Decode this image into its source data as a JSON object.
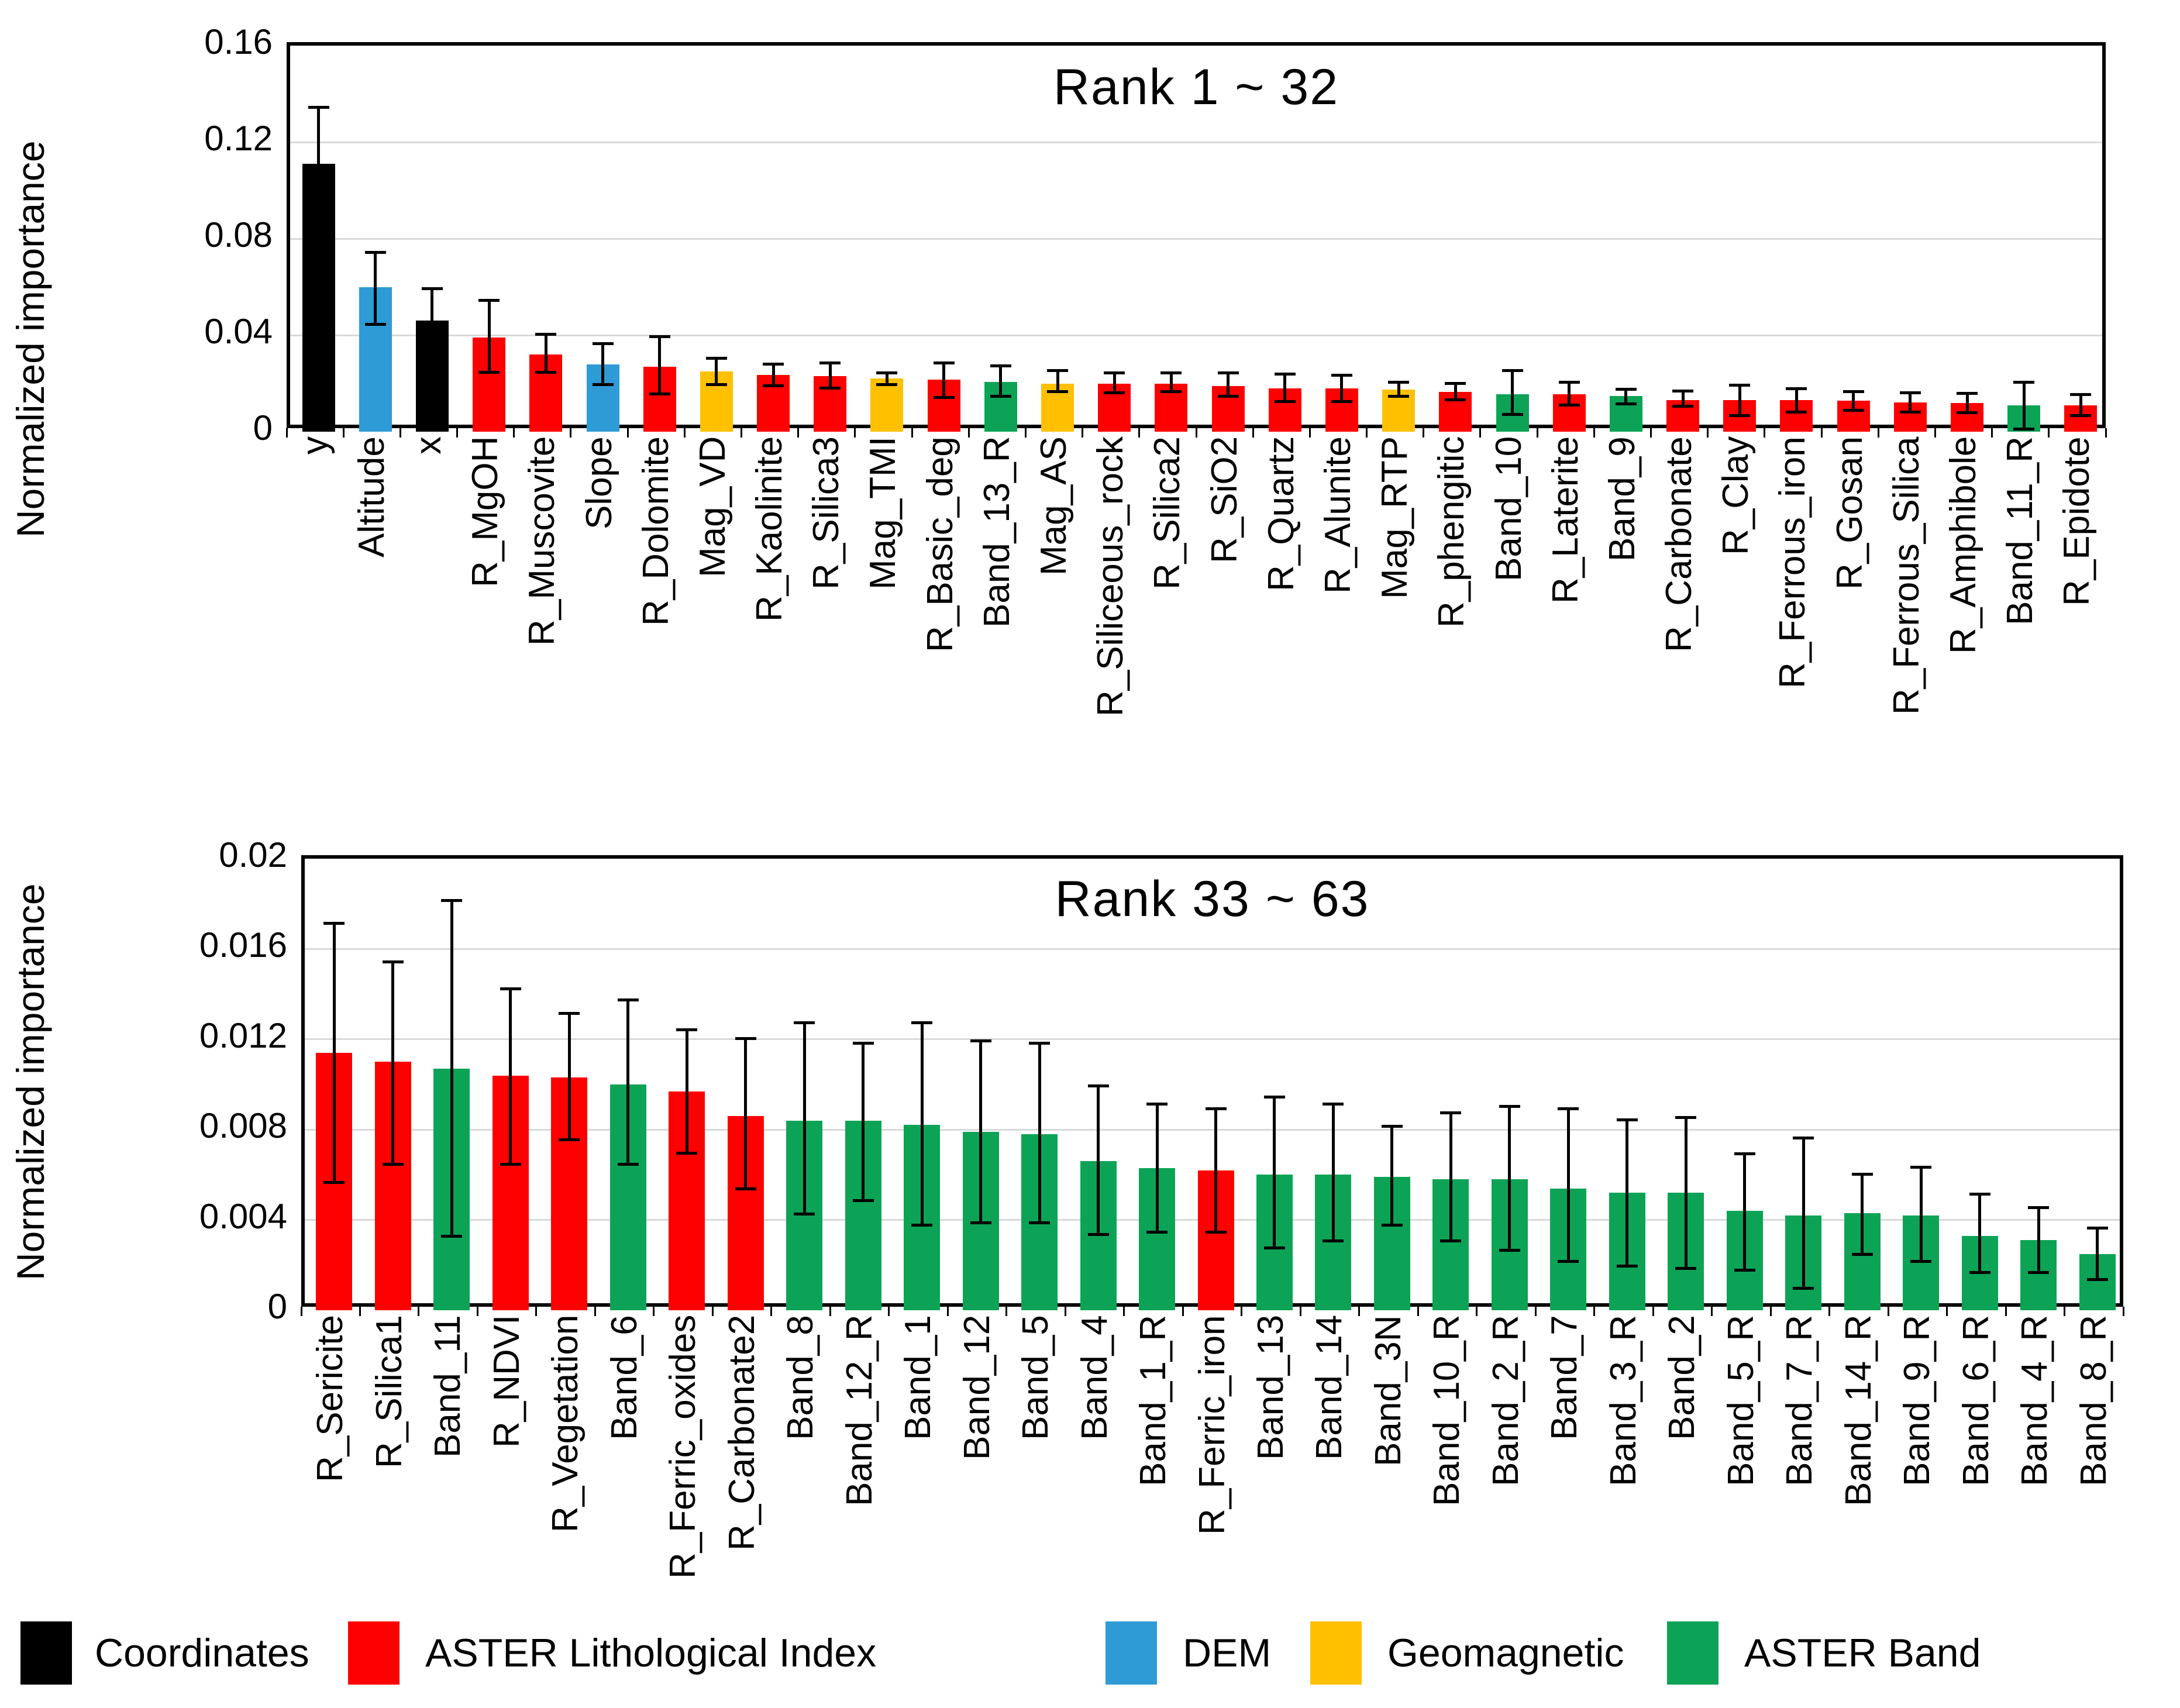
{
  "colors": {
    "coordinates": "#000000",
    "aster_index": "#FF0000",
    "dem": "#2E9BD6",
    "geomagnetic": "#FFC000",
    "aster_band": "#0DA356",
    "gridline": "#D9D9D9",
    "axis": "#000000"
  },
  "legend": {
    "items": [
      {
        "label": "Coordinates",
        "group": "coordinates"
      },
      {
        "label": "ASTER Lithological Index",
        "group": "aster_index"
      },
      {
        "label": "DEM",
        "group": "dem"
      },
      {
        "label": "Geomagnetic",
        "group": "geomagnetic"
      },
      {
        "label": "ASTER Band",
        "group": "aster_band"
      }
    ]
  },
  "chart_data": [
    {
      "type": "bar",
      "title": "Rank 1 ~ 32",
      "ylabel": "Normalized importance",
      "xlabel": "",
      "ylim": [
        0,
        0.16
      ],
      "grid": true,
      "ytick_values": [
        0,
        0.04,
        0.08,
        0.12,
        0.16
      ],
      "ytick_labels": [
        "0",
        "0.04",
        "0.08",
        "0.12",
        "0.16"
      ],
      "categories": [
        "y",
        "Altitude",
        "x",
        "R_MgOH",
        "R_Muscovite",
        "Slope",
        "R_Dolomite",
        "Mag_VD",
        "R_Kaolinite",
        "R_Silica3",
        "Mag_TMI",
        "R_Basic_deg",
        "Band_13_R",
        "Mag_AS",
        "R_Siliceous_rock",
        "R_Silica2",
        "R_SiO2",
        "R_Quartz",
        "R_Alunite",
        "Mag_RTP",
        "R_phengitic",
        "Band_10",
        "R_Laterite",
        "Band_9",
        "R_Carbonate",
        "R_Clay",
        "R_Ferrous_iron",
        "R_Gosan",
        "R_Ferrous_Silica",
        "R_Amphibole",
        "Band_11_R",
        "R_Epidote"
      ],
      "groups": [
        "coordinates",
        "dem",
        "coordinates",
        "aster_index",
        "aster_index",
        "dem",
        "aster_index",
        "geomagnetic",
        "aster_index",
        "aster_index",
        "geomagnetic",
        "aster_index",
        "aster_band",
        "geomagnetic",
        "aster_index",
        "aster_index",
        "aster_index",
        "aster_index",
        "aster_index",
        "geomagnetic",
        "aster_index",
        "aster_band",
        "aster_index",
        "aster_band",
        "aster_index",
        "aster_index",
        "aster_index",
        "aster_index",
        "aster_index",
        "aster_index",
        "aster_band",
        "aster_index"
      ],
      "values": [
        0.111,
        0.06,
        0.046,
        0.039,
        0.032,
        0.028,
        0.027,
        0.025,
        0.0235,
        0.023,
        0.022,
        0.0215,
        0.0205,
        0.02,
        0.02,
        0.02,
        0.019,
        0.018,
        0.018,
        0.0175,
        0.0165,
        0.0155,
        0.0155,
        0.0148,
        0.013,
        0.013,
        0.013,
        0.0128,
        0.0122,
        0.012,
        0.011,
        0.011
      ],
      "err_minus": [
        0.023,
        0.016,
        0.007,
        0.015,
        0.008,
        0.009,
        0.012,
        0.006,
        0.005,
        0.0055,
        0.003,
        0.008,
        0.0065,
        0.004,
        0.0045,
        0.004,
        0.005,
        0.006,
        0.006,
        0.0035,
        0.004,
        0.009,
        0.005,
        0.004,
        0.003,
        0.007,
        0.0055,
        0.0045,
        0.0048,
        0.0047,
        0.0105,
        0.005
      ],
      "err_plus": [
        0.024,
        0.015,
        0.014,
        0.016,
        0.009,
        0.009,
        0.013,
        0.006,
        0.005,
        0.006,
        0.003,
        0.0075,
        0.0075,
        0.006,
        0.005,
        0.005,
        0.006,
        0.0065,
        0.006,
        0.0035,
        0.004,
        0.0105,
        0.0055,
        0.0035,
        0.0045,
        0.007,
        0.0055,
        0.0045,
        0.0045,
        0.0045,
        0.01,
        0.005
      ]
    },
    {
      "type": "bar",
      "title": "Rank 33 ~ 63",
      "ylabel": "Normalized importance",
      "xlabel": "",
      "ylim": [
        0,
        0.02
      ],
      "grid": true,
      "ytick_values": [
        0,
        0.004,
        0.008,
        0.012,
        0.016,
        0.02
      ],
      "ytick_labels": [
        "0",
        "0.004",
        "0.008",
        "0.012",
        "0.016",
        "0.02"
      ],
      "categories": [
        "R_Sericite",
        "R_Silica1",
        "Band_11",
        "R_NDVI",
        "R_Vegetation",
        "Band_6",
        "R_Ferric_oxides",
        "R_Carbonate2",
        "Band_8",
        "Band_12_R",
        "Band_1",
        "Band_12",
        "Band_5",
        "Band_4",
        "Band_1_R",
        "R_Ferric_iron",
        "Band_13",
        "Band_14",
        "Band_3N",
        "Band_10_R",
        "Band_2_R",
        "Band_7",
        "Band_3_R",
        "Band_2",
        "Band_5_R",
        "Band_7_R",
        "Band_14_R",
        "Band_9_R",
        "Band_6_R",
        "Band_4_R",
        "Band_8_R"
      ],
      "groups": [
        "aster_index",
        "aster_index",
        "aster_band",
        "aster_index",
        "aster_index",
        "aster_band",
        "aster_index",
        "aster_index",
        "aster_band",
        "aster_band",
        "aster_band",
        "aster_band",
        "aster_band",
        "aster_band",
        "aster_band",
        "aster_index",
        "aster_band",
        "aster_band",
        "aster_band",
        "aster_band",
        "aster_band",
        "aster_band",
        "aster_band",
        "aster_band",
        "aster_band",
        "aster_band",
        "aster_band",
        "aster_band",
        "aster_band",
        "aster_band",
        "aster_band"
      ],
      "values": [
        0.0114,
        0.011,
        0.0107,
        0.0104,
        0.0103,
        0.01,
        0.0097,
        0.0086,
        0.0084,
        0.0084,
        0.0082,
        0.0079,
        0.0078,
        0.0066,
        0.0063,
        0.0062,
        0.006,
        0.006,
        0.0059,
        0.0058,
        0.0058,
        0.0054,
        0.0052,
        0.0052,
        0.0044,
        0.0042,
        0.0043,
        0.0042,
        0.0033,
        0.0031,
        0.0025
      ],
      "err_minus": [
        0.0058,
        0.0046,
        0.0075,
        0.004,
        0.0028,
        0.0036,
        0.0028,
        0.0033,
        0.0042,
        0.0036,
        0.0045,
        0.0041,
        0.004,
        0.0033,
        0.0029,
        0.0028,
        0.0033,
        0.003,
        0.0022,
        0.0028,
        0.0032,
        0.0033,
        0.0033,
        0.0034,
        0.0027,
        0.0033,
        0.0019,
        0.0021,
        0.0017,
        0.0015,
        0.0012
      ],
      "err_plus": [
        0.0058,
        0.0045,
        0.0075,
        0.0039,
        0.0029,
        0.0038,
        0.0028,
        0.0035,
        0.0044,
        0.0035,
        0.0046,
        0.0041,
        0.0041,
        0.0034,
        0.0029,
        0.0028,
        0.0035,
        0.0032,
        0.0023,
        0.003,
        0.0033,
        0.0036,
        0.0033,
        0.0034,
        0.0026,
        0.0035,
        0.0018,
        0.0022,
        0.0019,
        0.0015,
        0.0012
      ]
    }
  ]
}
